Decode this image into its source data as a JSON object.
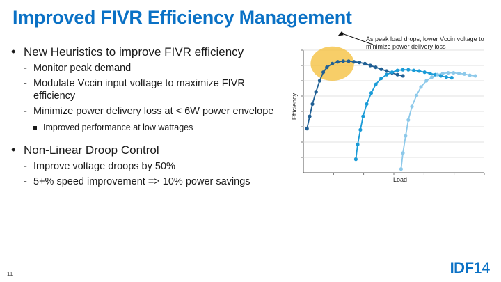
{
  "slide": {
    "title": "Improved FIVR Efficiency Management",
    "page_number": "11",
    "logo": {
      "main": "IDF",
      "suffix": "14"
    }
  },
  "bullets": {
    "b1": "New Heuristics to improve FIVR efficiency",
    "b1_subs": [
      "Monitor peak demand",
      "Modulate Vccin input voltage to maximize FIVR efficiency",
      "Minimize power delivery loss at < 6W power envelope"
    ],
    "b1_sub3_item": "Improved performance at low wattages",
    "b2": "Non-Linear Droop Control",
    "b2_subs": [
      "Improve voltage droops by 50%",
      "5+% speed improvement => 10% power savings"
    ]
  },
  "chart_data": {
    "type": "line",
    "xlabel": "Load",
    "ylabel": "Efficiency",
    "annotation": "As peak load drops, lower Vccin voltage to minimize power delivery loss",
    "grid": true,
    "axis_ticks_labeled": false,
    "xlim": [
      0,
      10
    ],
    "ylim": [
      0,
      10
    ],
    "series": [
      {
        "color": "#1f5f94",
        "x": [
          0.2,
          0.35,
          0.5,
          0.7,
          0.9,
          1.1,
          1.3,
          1.6,
          1.9,
          2.2,
          2.5,
          2.8,
          3.1,
          3.4,
          3.7,
          4.0,
          4.3,
          4.6,
          4.9,
          5.2,
          5.5
        ],
        "y": [
          3.6,
          4.6,
          5.6,
          6.6,
          7.5,
          8.2,
          8.6,
          8.9,
          9.05,
          9.1,
          9.1,
          9.05,
          9.0,
          8.9,
          8.75,
          8.6,
          8.45,
          8.3,
          8.15,
          8.0,
          7.9
        ]
      },
      {
        "color": "#1a9bd7",
        "x": [
          2.9,
          3.0,
          3.15,
          3.3,
          3.5,
          3.75,
          4.0,
          4.3,
          4.6,
          4.9,
          5.2,
          5.5,
          5.8,
          6.1,
          6.4,
          6.7,
          7.0,
          7.3,
          7.6,
          7.9,
          8.2
        ],
        "y": [
          1.1,
          2.3,
          3.5,
          4.6,
          5.6,
          6.5,
          7.2,
          7.7,
          8.0,
          8.2,
          8.35,
          8.4,
          8.4,
          8.35,
          8.3,
          8.2,
          8.1,
          8.0,
          7.9,
          7.8,
          7.75
        ]
      },
      {
        "color": "#8dc9ea",
        "x": [
          5.4,
          5.5,
          5.65,
          5.8,
          6.0,
          6.25,
          6.5,
          6.8,
          7.1,
          7.4,
          7.7,
          8.0,
          8.3,
          8.6,
          8.9,
          9.2,
          9.5
        ],
        "y": [
          0.3,
          1.6,
          3.0,
          4.3,
          5.4,
          6.3,
          7.0,
          7.5,
          7.8,
          8.0,
          8.1,
          8.15,
          8.15,
          8.1,
          8.05,
          7.95,
          7.9
        ]
      }
    ],
    "highlight": {
      "x": 1.6,
      "y": 8.9,
      "rx": 1.2,
      "ry": 1.4,
      "color": "#f5c242"
    }
  }
}
